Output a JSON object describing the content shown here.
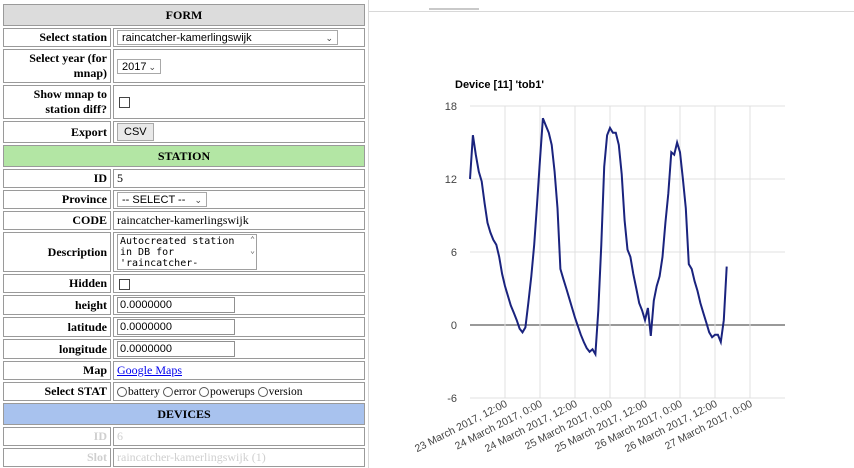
{
  "form": {
    "header": "FORM",
    "select_station_label": "Select station",
    "select_station_value": "raincatcher-kamerlingswijk",
    "select_year_label": "Select year (for mnap)",
    "select_year_value": "2017",
    "show_mnap_label": "Show mnap to station diff?",
    "export_label": "Export",
    "csv_button": "CSV"
  },
  "station": {
    "header": "STATION",
    "id_label": "ID",
    "id_value": "5",
    "province_label": "Province",
    "province_value": "-- SELECT --",
    "code_label": "CODE",
    "code_value": "raincatcher-kamerlingswijk",
    "description_label": "Description",
    "description_lines": [
      "Autocreated station",
      "in DB for",
      "'raincatcher-"
    ],
    "hidden_label": "Hidden",
    "height_label": "height",
    "height_value": "0.0000000",
    "latitude_label": "latitude",
    "latitude_value": "0.0000000",
    "longitude_label": "longitude",
    "longitude_value": "0.0000000",
    "map_label": "Map",
    "map_link": "Google Maps",
    "select_stat_label": "Select STAT",
    "stat_options": [
      "battery",
      "error",
      "powerups",
      "version"
    ]
  },
  "devices": {
    "header": "DEVICES",
    "id_label": "ID",
    "id_value": "6",
    "row2_label": "Slot",
    "row2_value": "raincatcher-kamerlingswijk (1)"
  },
  "colors": {
    "form_header": "#dcdcdc",
    "station_header": "#b3e6a4",
    "devices_header": "#a8c2ee",
    "series_line": "#1a237e",
    "gridline": "#e0e0e0",
    "zero_line": "#333333"
  },
  "chart_data": {
    "type": "line",
    "title": "Device [11] 'tob1'",
    "xlabel": "",
    "ylabel": "",
    "ylim": [
      -6,
      18
    ],
    "yticks": [
      -6,
      0,
      6,
      12,
      18
    ],
    "grid": true,
    "legend": "none",
    "xticks": [
      {
        "x": "2017-03-23T12:00",
        "label": "23 March 2017, 12:00"
      },
      {
        "x": "2017-03-24T00:00",
        "label": "24 March 2017, 0:00"
      },
      {
        "x": "2017-03-24T12:00",
        "label": "24 March 2017, 12:00"
      },
      {
        "x": "2017-03-25T00:00",
        "label": "25 March 2017, 0:00"
      },
      {
        "x": "2017-03-25T12:00",
        "label": "25 March 2017, 12:00"
      },
      {
        "x": "2017-03-26T00:00",
        "label": "26 March 2017, 0:00"
      },
      {
        "x": "2017-03-26T12:00",
        "label": "26 March 2017, 12:00"
      },
      {
        "x": "2017-03-27T00:00",
        "label": "27 March 2017, 0:00"
      }
    ],
    "x_range": [
      "2017-03-23T00:00",
      "2017-03-27T12:00"
    ],
    "series": [
      {
        "points": [
          [
            "2017-03-23T00:00",
            12.0
          ],
          [
            "2017-03-23T01:00",
            15.6
          ],
          [
            "2017-03-23T02:00",
            14.0
          ],
          [
            "2017-03-23T03:00",
            12.6
          ],
          [
            "2017-03-23T04:00",
            11.8
          ],
          [
            "2017-03-23T05:00",
            10.0
          ],
          [
            "2017-03-23T06:00",
            8.4
          ],
          [
            "2017-03-23T07:00",
            7.6
          ],
          [
            "2017-03-23T08:00",
            7.0
          ],
          [
            "2017-03-23T09:00",
            6.6
          ],
          [
            "2017-03-23T10:00",
            5.6
          ],
          [
            "2017-03-23T11:00",
            4.2
          ],
          [
            "2017-03-23T12:00",
            3.2
          ],
          [
            "2017-03-23T13:00",
            2.4
          ],
          [
            "2017-03-23T14:00",
            1.6
          ],
          [
            "2017-03-23T15:00",
            1.0
          ],
          [
            "2017-03-23T16:00",
            0.4
          ],
          [
            "2017-03-23T17:00",
            -0.3
          ],
          [
            "2017-03-23T18:00",
            -0.6
          ],
          [
            "2017-03-23T19:00",
            -0.2
          ],
          [
            "2017-03-23T20:00",
            1.8
          ],
          [
            "2017-03-23T21:00",
            4.0
          ],
          [
            "2017-03-23T22:00",
            6.6
          ],
          [
            "2017-03-23T23:00",
            10.0
          ],
          [
            "2017-03-24T00:00",
            13.6
          ],
          [
            "2017-03-24T01:00",
            17.0
          ],
          [
            "2017-03-24T02:00",
            16.4
          ],
          [
            "2017-03-24T03:00",
            15.8
          ],
          [
            "2017-03-24T04:00",
            14.8
          ],
          [
            "2017-03-24T05:00",
            12.6
          ],
          [
            "2017-03-24T06:00",
            9.6
          ],
          [
            "2017-03-24T07:00",
            4.6
          ],
          [
            "2017-03-24T08:00",
            3.8
          ],
          [
            "2017-03-24T09:00",
            3.0
          ],
          [
            "2017-03-24T10:00",
            2.2
          ],
          [
            "2017-03-24T11:00",
            1.4
          ],
          [
            "2017-03-24T12:00",
            0.6
          ],
          [
            "2017-03-24T13:00",
            -0.1
          ],
          [
            "2017-03-24T14:00",
            -0.8
          ],
          [
            "2017-03-24T15:00",
            -1.4
          ],
          [
            "2017-03-24T16:00",
            -1.9
          ],
          [
            "2017-03-24T17:00",
            -2.2
          ],
          [
            "2017-03-24T18:00",
            -2.0
          ],
          [
            "2017-03-24T19:00",
            -2.4
          ],
          [
            "2017-03-24T20:00",
            1.2
          ],
          [
            "2017-03-24T21:00",
            6.6
          ],
          [
            "2017-03-24T22:00",
            13.0
          ],
          [
            "2017-03-24T23:00",
            15.6
          ],
          [
            "2017-03-25T00:00",
            16.2
          ],
          [
            "2017-03-25T01:00",
            15.8
          ],
          [
            "2017-03-25T02:00",
            15.8
          ],
          [
            "2017-03-25T03:00",
            14.8
          ],
          [
            "2017-03-25T04:00",
            12.4
          ],
          [
            "2017-03-25T05:00",
            8.6
          ],
          [
            "2017-03-25T06:00",
            6.2
          ],
          [
            "2017-03-25T07:00",
            5.6
          ],
          [
            "2017-03-25T08:00",
            4.2
          ],
          [
            "2017-03-25T09:00",
            3.0
          ],
          [
            "2017-03-25T10:00",
            1.8
          ],
          [
            "2017-03-25T11:00",
            1.2
          ],
          [
            "2017-03-25T12:00",
            0.4
          ],
          [
            "2017-03-25T13:00",
            1.4
          ],
          [
            "2017-03-25T14:00",
            -0.9
          ],
          [
            "2017-03-25T15:00",
            2.0
          ],
          [
            "2017-03-25T16:00",
            3.2
          ],
          [
            "2017-03-25T17:00",
            4.0
          ],
          [
            "2017-03-25T18:00",
            5.6
          ],
          [
            "2017-03-25T19:00",
            8.4
          ],
          [
            "2017-03-25T20:00",
            10.8
          ],
          [
            "2017-03-25T21:00",
            14.2
          ],
          [
            "2017-03-25T22:00",
            14.0
          ],
          [
            "2017-03-25T23:00",
            15.0
          ],
          [
            "2017-03-26T00:00",
            14.2
          ],
          [
            "2017-03-26T01:00",
            12.0
          ],
          [
            "2017-03-26T02:00",
            9.6
          ],
          [
            "2017-03-26T03:00",
            5.0
          ],
          [
            "2017-03-26T04:00",
            4.6
          ],
          [
            "2017-03-26T05:00",
            3.6
          ],
          [
            "2017-03-26T06:00",
            2.8
          ],
          [
            "2017-03-26T07:00",
            1.8
          ],
          [
            "2017-03-26T08:00",
            1.0
          ],
          [
            "2017-03-26T09:00",
            0.2
          ],
          [
            "2017-03-26T10:00",
            -0.6
          ],
          [
            "2017-03-26T11:00",
            -1.0
          ],
          [
            "2017-03-26T12:00",
            -0.8
          ],
          [
            "2017-03-26T13:00",
            -0.8
          ],
          [
            "2017-03-26T14:00",
            -1.4
          ],
          [
            "2017-03-26T15:00",
            0.4
          ],
          [
            "2017-03-26T16:00",
            4.8
          ]
        ]
      }
    ]
  }
}
